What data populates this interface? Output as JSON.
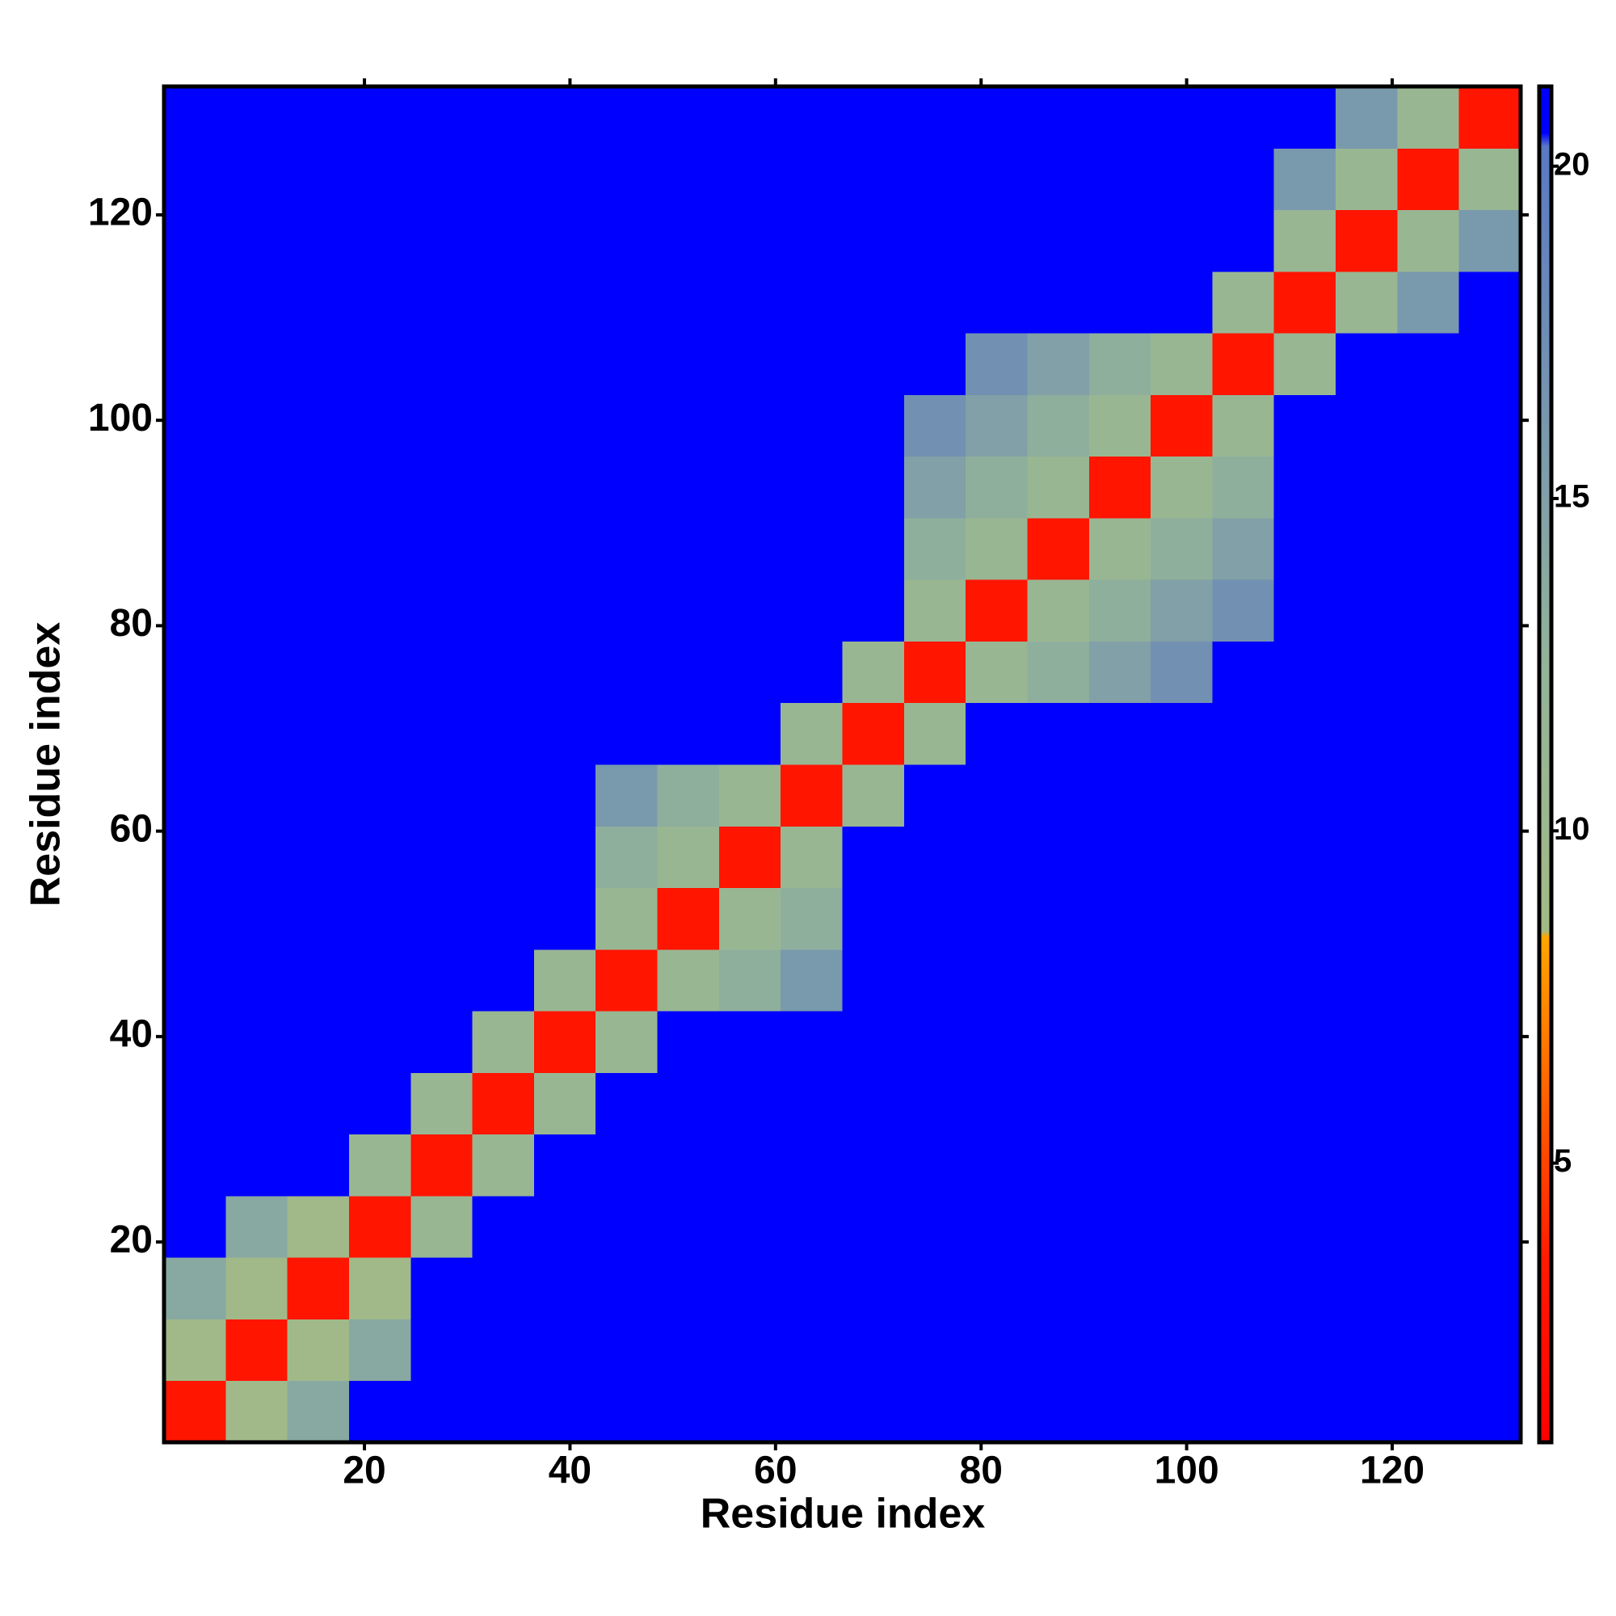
{
  "chart_data": {
    "type": "heatmap",
    "xlabel": "Residue index",
    "ylabel": "Residue index",
    "x_bins": [
      0.5,
      6.5,
      12.5,
      18.5,
      24.5,
      30.5,
      36.5,
      42.5,
      48.5,
      54.5,
      60.5,
      66.5,
      72.5,
      78.5,
      84.5,
      90.5,
      96.5,
      102.5,
      108.5,
      114.5,
      120.5,
      126.5,
      132.5
    ],
    "y_bins": [
      0.5,
      6.5,
      12.5,
      18.5,
      24.5,
      30.5,
      36.5,
      42.5,
      48.5,
      54.5,
      60.5,
      66.5,
      72.5,
      78.5,
      84.5,
      90.5,
      96.5,
      102.5,
      108.5,
      114.5,
      120.5,
      126.5,
      132.5
    ],
    "xlim": [
      0.5,
      132.5
    ],
    "ylim": [
      0.5,
      132.5
    ],
    "xticks": [
      20,
      40,
      60,
      80,
      100,
      120
    ],
    "yticks": [
      20,
      40,
      60,
      80,
      100,
      120
    ],
    "zlim": [
      0.8,
      21.2
    ],
    "zticks": [
      5,
      10,
      15,
      20
    ],
    "colorscale": [
      [
        0.8,
        "#ff0000"
      ],
      [
        3.5,
        "#ff1a00"
      ],
      [
        8.4,
        "#ffa500"
      ],
      [
        8.5,
        "#a3ba86"
      ],
      [
        12.5,
        "#93b39a"
      ],
      [
        20.3,
        "#5a78c4"
      ],
      [
        20.5,
        "#0000ff"
      ]
    ],
    "z": [
      [
        3,
        9,
        14,
        21,
        21,
        21,
        21,
        21,
        21,
        21,
        21,
        21,
        21,
        21,
        21,
        21,
        21,
        21,
        21,
        21,
        21,
        21
      ],
      [
        9,
        3,
        9,
        14,
        21,
        21,
        21,
        21,
        21,
        21,
        21,
        21,
        21,
        21,
        21,
        21,
        21,
        21,
        21,
        21,
        21,
        21
      ],
      [
        14,
        9,
        3,
        9,
        21,
        21,
        21,
        21,
        21,
        21,
        21,
        21,
        21,
        21,
        21,
        21,
        21,
        21,
        21,
        21,
        21,
        21
      ],
      [
        21,
        14,
        9,
        3,
        11,
        21,
        21,
        21,
        21,
        21,
        21,
        21,
        21,
        21,
        21,
        21,
        21,
        21,
        21,
        21,
        21,
        21
      ],
      [
        21,
        21,
        21,
        11,
        3,
        11,
        21,
        21,
        21,
        21,
        21,
        21,
        21,
        21,
        21,
        21,
        21,
        21,
        21,
        21,
        21,
        21
      ],
      [
        21,
        21,
        21,
        21,
        11,
        3,
        11,
        21,
        21,
        21,
        21,
        21,
        21,
        21,
        21,
        21,
        21,
        21,
        21,
        21,
        21,
        21
      ],
      [
        21,
        21,
        21,
        21,
        21,
        11,
        3,
        11,
        21,
        21,
        21,
        21,
        21,
        21,
        21,
        21,
        21,
        21,
        21,
        21,
        21,
        21
      ],
      [
        21,
        21,
        21,
        21,
        21,
        21,
        11,
        3,
        11,
        13,
        16,
        21,
        21,
        21,
        21,
        21,
        21,
        21,
        21,
        21,
        21,
        21
      ],
      [
        21,
        21,
        21,
        21,
        21,
        21,
        21,
        11,
        3,
        11,
        13,
        21,
        21,
        21,
        21,
        21,
        21,
        21,
        21,
        21,
        21,
        21
      ],
      [
        21,
        21,
        21,
        21,
        21,
        21,
        21,
        13,
        11,
        3,
        11,
        21,
        21,
        21,
        21,
        21,
        21,
        21,
        21,
        21,
        21,
        21
      ],
      [
        21,
        21,
        21,
        21,
        21,
        21,
        21,
        16,
        13,
        11,
        3,
        11,
        21,
        21,
        21,
        21,
        21,
        21,
        21,
        21,
        21,
        21
      ],
      [
        21,
        21,
        21,
        21,
        21,
        21,
        21,
        21,
        21,
        21,
        11,
        3,
        11,
        21,
        21,
        21,
        21,
        21,
        21,
        21,
        21,
        21
      ],
      [
        21,
        21,
        21,
        21,
        21,
        21,
        21,
        21,
        21,
        21,
        21,
        11,
        3,
        11,
        13,
        15,
        17,
        21,
        21,
        21,
        21,
        21
      ],
      [
        21,
        21,
        21,
        21,
        21,
        21,
        21,
        21,
        21,
        21,
        21,
        21,
        11,
        3,
        11,
        13,
        15,
        17,
        21,
        21,
        21,
        21
      ],
      [
        21,
        21,
        21,
        21,
        21,
        21,
        21,
        21,
        21,
        21,
        21,
        21,
        13,
        11,
        3,
        11,
        13,
        15,
        21,
        21,
        21,
        21
      ],
      [
        21,
        21,
        21,
        21,
        21,
        21,
        21,
        21,
        21,
        21,
        21,
        21,
        15,
        13,
        11,
        3,
        11,
        13,
        21,
        21,
        21,
        21
      ],
      [
        21,
        21,
        21,
        21,
        21,
        21,
        21,
        21,
        21,
        21,
        21,
        21,
        17,
        15,
        13,
        11,
        3,
        11,
        21,
        21,
        21,
        21
      ],
      [
        21,
        21,
        21,
        21,
        21,
        21,
        21,
        21,
        21,
        21,
        21,
        21,
        21,
        17,
        15,
        13,
        11,
        3,
        11,
        21,
        21,
        21
      ],
      [
        21,
        21,
        21,
        21,
        21,
        21,
        21,
        21,
        21,
        21,
        21,
        21,
        21,
        21,
        21,
        21,
        21,
        11,
        3,
        11,
        16,
        21
      ],
      [
        21,
        21,
        21,
        21,
        21,
        21,
        21,
        21,
        21,
        21,
        21,
        21,
        21,
        21,
        21,
        21,
        21,
        21,
        11,
        3,
        11,
        16
      ],
      [
        21,
        21,
        21,
        21,
        21,
        21,
        21,
        21,
        21,
        21,
        21,
        21,
        21,
        21,
        21,
        21,
        21,
        21,
        16,
        11,
        3,
        11
      ],
      [
        21,
        21,
        21,
        21,
        21,
        21,
        21,
        21,
        21,
        21,
        21,
        21,
        21,
        21,
        21,
        21,
        21,
        21,
        21,
        16,
        11,
        3
      ]
    ]
  }
}
